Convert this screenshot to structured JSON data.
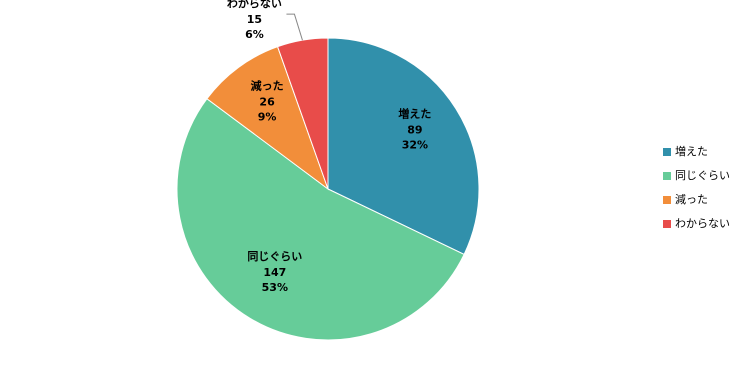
{
  "chart_data": {
    "type": "pie",
    "categories": [
      "増えた",
      "同じぐらい",
      "減った",
      "わからない"
    ],
    "values": [
      89,
      147,
      26,
      15
    ],
    "percent_labels": [
      "32%",
      "53%",
      "9%",
      "6%"
    ],
    "colors": [
      "#3190ab",
      "#66cc99",
      "#f28e3a",
      "#e84c4a"
    ],
    "legend": "right"
  }
}
